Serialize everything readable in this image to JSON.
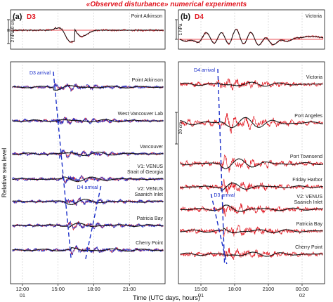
{
  "chart_data": {
    "type": "line",
    "title": "«Observed disturbance» numerical experiments",
    "xlabel": "Time (UTC days, hours)",
    "ylabel": "Relative sea level",
    "panels": [
      {
        "id": "a",
        "panel_label": "(a)",
        "event": "D3",
        "xlim": [
          11,
          24
        ],
        "x_ticks": [
          {
            "value": 12,
            "time": "12:00",
            "day": "01"
          },
          {
            "value": 15,
            "time": "15:00",
            "day": ""
          },
          {
            "value": 18,
            "time": "18:00",
            "day": ""
          },
          {
            "value": 21,
            "time": "21:00",
            "day": ""
          }
        ],
        "pressure": {
          "station": "Point Atkinson",
          "scale_label": "2 hPa"
        },
        "sea_level_scale_label": "10 cm",
        "stations": [
          "Point Atkinson",
          "West Vancouver Lab",
          "Vancouver",
          "V1: VENUS Strait of Georgia",
          "V2: VENUS Saanich Inlet",
          "Patricia Bay",
          "Cherry Point"
        ],
        "station_lines": [
          [
            "Point Atkinson"
          ],
          [
            "West Vancouver Lab"
          ],
          [
            "Vancouver"
          ],
          [
            "V1: VENUS",
            "Strait of Georgia"
          ],
          [
            "V2: VENUS",
            "Saanich Inlet"
          ],
          [
            "Patricia Bay"
          ],
          [
            "Cherry Point"
          ]
        ],
        "arrivals": [
          {
            "label": "D3 arrival",
            "from": {
              "x": 14.6,
              "station": "Point Atkinson"
            },
            "to": {
              "x": 16.1,
              "station": "Cherry Point"
            }
          },
          {
            "label": "D4 arrival",
            "from": {
              "x": 18.6,
              "station": "V2: VENUS Saanich Inlet"
            },
            "to": {
              "x": 17.3,
              "station": "Cherry Point"
            }
          }
        ]
      },
      {
        "id": "b",
        "panel_label": "(b)",
        "event": "D4",
        "xlim": [
          13,
          26
        ],
        "x_ticks": [
          {
            "value": 15,
            "time": "15:00",
            "day": "01"
          },
          {
            "value": 18,
            "time": "18:00",
            "day": ""
          },
          {
            "value": 21,
            "time": "2100",
            "day": ""
          },
          {
            "value": 24,
            "time": "00:00",
            "day": "02"
          }
        ],
        "pressure": {
          "station": "Victoria",
          "scale_label": "1 hPa"
        },
        "sea_level_scale_label": "20 cm",
        "stations": [
          "Victoria",
          "Port Angeles",
          "Port Townsend",
          "Friday Harbor",
          "V2: VENUS Saanich Inlet",
          "Patricia Bay",
          "Cherry Point"
        ],
        "station_lines": [
          [
            "Victoria"
          ],
          [
            "Port Angeles"
          ],
          [
            "Port Townsend"
          ],
          [
            "Friday Harbor"
          ],
          [
            "V2: VENUS",
            "Saanich Inlet"
          ],
          [
            "Patricia Bay"
          ],
          [
            "Cherry Point"
          ]
        ],
        "arrivals": [
          {
            "label": "D4 arrival",
            "from": {
              "x": 16.5,
              "station": "Victoria"
            },
            "to": {
              "x": 17.1,
              "station": "Cherry Point"
            }
          },
          {
            "label": "D3 arrival",
            "from": {
              "x": 15.9,
              "station": "V2: VENUS Saanich Inlet"
            },
            "to": {
              "x": 17.3,
              "station": "Cherry Point"
            }
          }
        ]
      }
    ],
    "series": [
      {
        "color": "#e0141e"
      },
      {
        "color": "#111111"
      },
      {
        "color": "#1b2fc9"
      }
    ]
  }
}
